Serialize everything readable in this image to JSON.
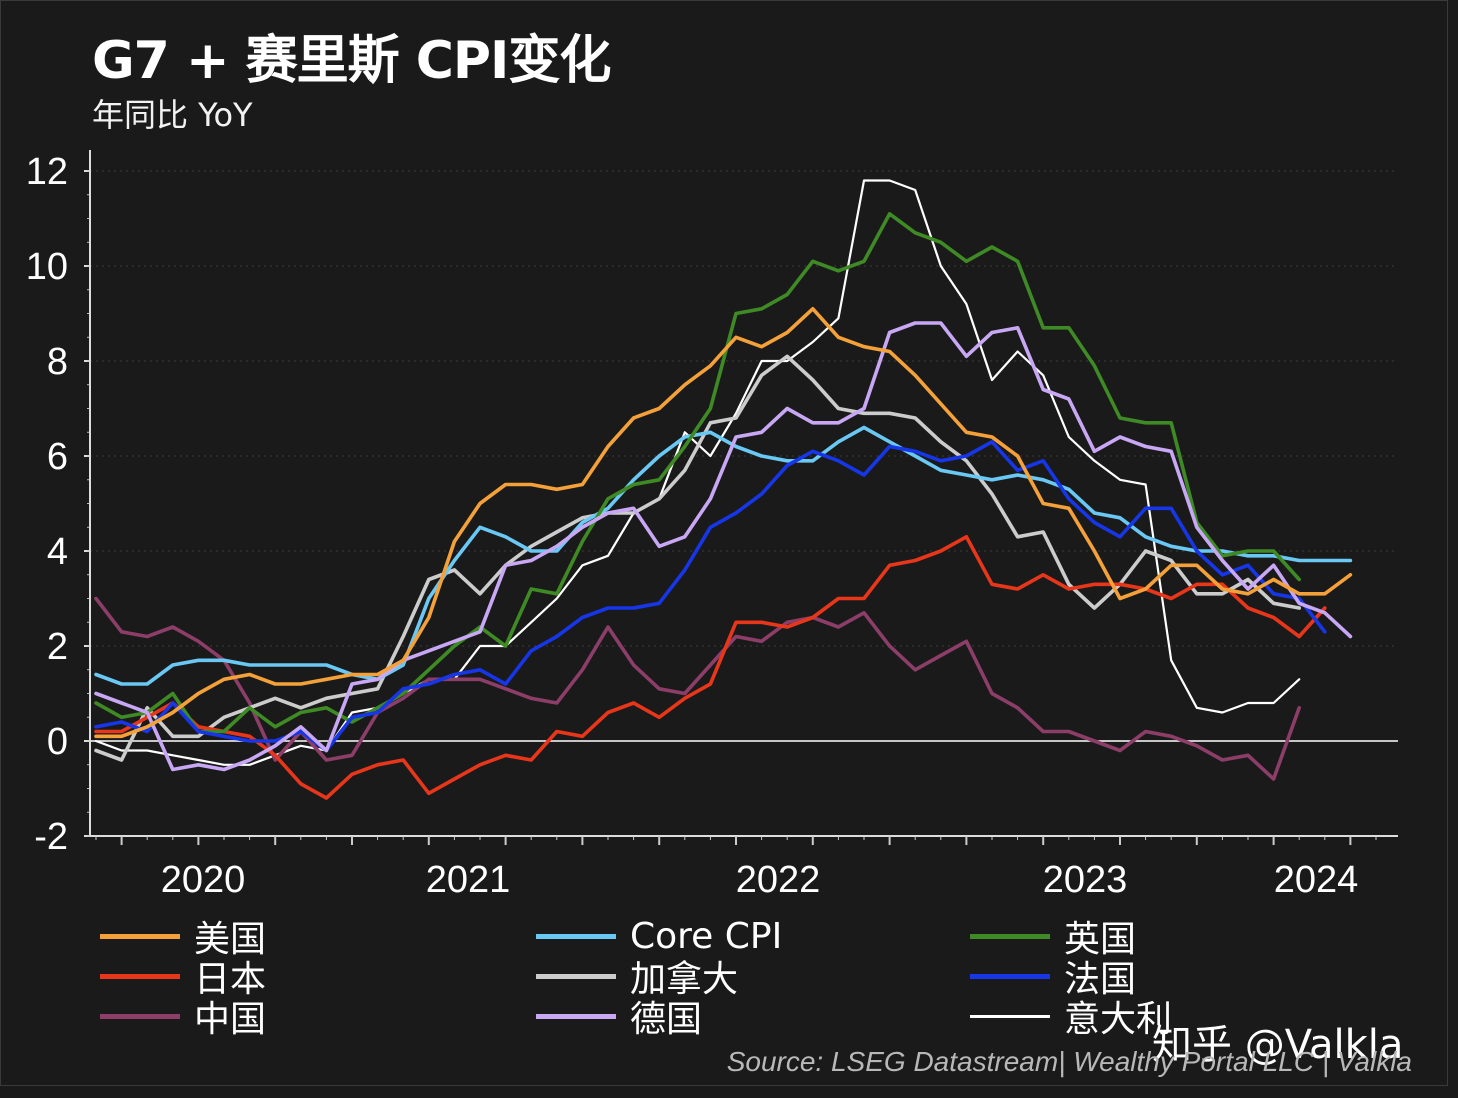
{
  "header": {
    "title": "G7 + 赛里斯 CPI变化",
    "subtitle": "年同比 YoY"
  },
  "source": "Source: LSEG Datastream| Wealthy Portal LLC | Valkla",
  "watermark": "知乎 @Valkla",
  "chart_data": {
    "type": "line",
    "title": "G7 + 赛里斯 CPI变化",
    "subtitle": "年同比 YoY",
    "xlabel": "",
    "ylabel": "",
    "x_start": "2019-09",
    "x_frequency": "monthly",
    "x_ticks": [
      "2020",
      "2021",
      "2022",
      "2023",
      "2024"
    ],
    "y_ticks": [
      "-2",
      "0",
      "2",
      "4",
      "6",
      "8",
      "10",
      "12"
    ],
    "ylim": [
      -2,
      12.5
    ],
    "grid": "horizontal-dotted",
    "zero_line": true,
    "legend_position": "bottom",
    "series": [
      {
        "name": "美国",
        "color": "#f5a13a",
        "values": [
          0.1,
          0.1,
          0.3,
          0.6,
          1.0,
          1.3,
          1.4,
          1.2,
          1.2,
          1.3,
          1.4,
          1.4,
          1.7,
          2.6,
          4.2,
          5.0,
          5.4,
          5.4,
          5.3,
          5.4,
          6.2,
          6.8,
          7.0,
          7.5,
          7.9,
          8.5,
          8.3,
          8.6,
          9.1,
          8.5,
          8.3,
          8.2,
          7.7,
          7.1,
          6.5,
          6.4,
          6.0,
          5.0,
          4.9,
          4.0,
          3.0,
          3.2,
          3.7,
          3.7,
          3.2,
          3.1,
          3.4,
          3.1,
          3.1,
          3.5
        ]
      },
      {
        "name": "Core CPI",
        "color": "#6ac8f5",
        "values": [
          1.4,
          1.2,
          1.2,
          1.6,
          1.7,
          1.7,
          1.6,
          1.6,
          1.6,
          1.6,
          1.4,
          1.3,
          1.6,
          3.0,
          3.8,
          4.5,
          4.3,
          4.0,
          4.0,
          4.6,
          4.9,
          5.5,
          6.0,
          6.4,
          6.5,
          6.2,
          6.0,
          5.9,
          5.9,
          6.3,
          6.6,
          6.3,
          6.0,
          5.7,
          5.6,
          5.5,
          5.6,
          5.5,
          5.3,
          4.8,
          4.7,
          4.3,
          4.1,
          4.0,
          4.0,
          3.9,
          3.9,
          3.8,
          3.8,
          3.8
        ]
      },
      {
        "name": "英国",
        "color": "#3e8a24",
        "values": [
          0.8,
          0.5,
          0.6,
          1.0,
          0.2,
          0.2,
          0.7,
          0.3,
          0.6,
          0.7,
          0.4,
          0.7,
          1.0,
          1.5,
          2.0,
          2.4,
          2.0,
          3.2,
          3.1,
          4.2,
          5.1,
          5.4,
          5.5,
          6.2,
          7.0,
          9.0,
          9.1,
          9.4,
          10.1,
          9.9,
          10.1,
          11.1,
          10.7,
          10.5,
          10.1,
          10.4,
          10.1,
          8.7,
          8.7,
          7.9,
          6.8,
          6.7,
          6.7,
          4.6,
          3.9,
          4.0,
          4.0,
          3.4
        ]
      },
      {
        "name": "日本",
        "color": "#e8361a",
        "values": [
          0.2,
          0.2,
          0.5,
          0.8,
          0.3,
          0.2,
          0.1,
          -0.3,
          -0.9,
          -1.2,
          -0.7,
          -0.5,
          -0.4,
          -1.1,
          -0.8,
          -0.5,
          -0.3,
          -0.4,
          0.2,
          0.1,
          0.6,
          0.8,
          0.5,
          0.9,
          1.2,
          2.5,
          2.5,
          2.4,
          2.6,
          3.0,
          3.0,
          3.7,
          3.8,
          4.0,
          4.3,
          3.3,
          3.2,
          3.5,
          3.2,
          3.3,
          3.3,
          3.2,
          3.0,
          3.3,
          3.3,
          2.8,
          2.6,
          2.2,
          2.8
        ]
      },
      {
        "name": "加拿大",
        "color": "#cccccc",
        "values": [
          -0.2,
          -0.4,
          0.7,
          0.1,
          0.1,
          0.5,
          0.7,
          0.9,
          0.7,
          0.9,
          1.0,
          1.1,
          2.2,
          3.4,
          3.6,
          3.1,
          3.7,
          4.1,
          4.4,
          4.7,
          4.8,
          4.8,
          5.1,
          5.7,
          6.7,
          6.8,
          7.7,
          8.1,
          7.6,
          7.0,
          6.9,
          6.9,
          6.8,
          6.3,
          5.9,
          5.2,
          4.3,
          4.4,
          3.3,
          2.8,
          3.3,
          4.0,
          3.8,
          3.1,
          3.1,
          3.4,
          2.9,
          2.8
        ]
      },
      {
        "name": "法国",
        "color": "#1636e8",
        "values": [
          0.3,
          0.4,
          0.2,
          0.8,
          0.2,
          0.1,
          0.0,
          0.0,
          0.2,
          -0.2,
          0.5,
          0.6,
          1.1,
          1.2,
          1.4,
          1.5,
          1.2,
          1.9,
          2.2,
          2.6,
          2.8,
          2.8,
          2.9,
          3.6,
          4.5,
          4.8,
          5.2,
          5.8,
          6.1,
          5.9,
          5.6,
          6.2,
          6.1,
          5.9,
          6.0,
          6.3,
          5.7,
          5.9,
          5.1,
          4.6,
          4.3,
          4.9,
          4.9,
          4.0,
          3.5,
          3.7,
          3.1,
          3.0,
          2.3
        ]
      },
      {
        "name": "中国",
        "color": "#8c3e68",
        "values": [
          3.0,
          2.3,
          2.2,
          2.4,
          2.1,
          1.7,
          0.8,
          -0.4,
          0.2,
          -0.4,
          -0.3,
          0.6,
          0.9,
          1.3,
          1.3,
          1.3,
          1.1,
          0.9,
          0.8,
          1.5,
          2.4,
          1.6,
          1.1,
          1.0,
          1.6,
          2.2,
          2.1,
          2.5,
          2.6,
          2.4,
          2.7,
          2.0,
          1.5,
          1.8,
          2.1,
          1.0,
          0.7,
          0.2,
          0.2,
          0.0,
          -0.2,
          0.2,
          0.1,
          -0.1,
          -0.4,
          -0.3,
          -0.8,
          0.7
        ]
      },
      {
        "name": "德国",
        "color": "#c8a8f5",
        "values": [
          1.0,
          0.8,
          0.6,
          -0.6,
          -0.5,
          -0.6,
          -0.4,
          -0.1,
          0.3,
          -0.2,
          1.2,
          1.3,
          1.7,
          1.9,
          2.1,
          2.3,
          3.7,
          3.8,
          4.1,
          4.5,
          4.8,
          4.9,
          4.1,
          4.3,
          5.1,
          6.4,
          6.5,
          7.0,
          6.7,
          6.7,
          7.0,
          8.6,
          8.8,
          8.8,
          8.1,
          8.6,
          8.7,
          7.4,
          7.2,
          6.1,
          6.4,
          6.2,
          6.1,
          4.5,
          3.8,
          3.2,
          3.7,
          2.9,
          2.7,
          2.2
        ]
      },
      {
        "name": "意大利",
        "color": "#ffffff",
        "values": [
          0.0,
          -0.2,
          -0.2,
          -0.3,
          -0.4,
          -0.5,
          -0.5,
          -0.3,
          -0.1,
          -0.2,
          0.6,
          0.7,
          1.0,
          1.3,
          1.3,
          2.0,
          2.0,
          2.5,
          3.0,
          3.7,
          3.9,
          4.8,
          5.1,
          6.5,
          6.0,
          6.9,
          8.0,
          8.0,
          8.4,
          8.9,
          11.8,
          11.8,
          11.6,
          10.0,
          9.2,
          7.6,
          8.2,
          7.7,
          6.4,
          5.9,
          5.5,
          5.4,
          1.7,
          0.7,
          0.6,
          0.8,
          0.8,
          1.3
        ]
      }
    ]
  }
}
